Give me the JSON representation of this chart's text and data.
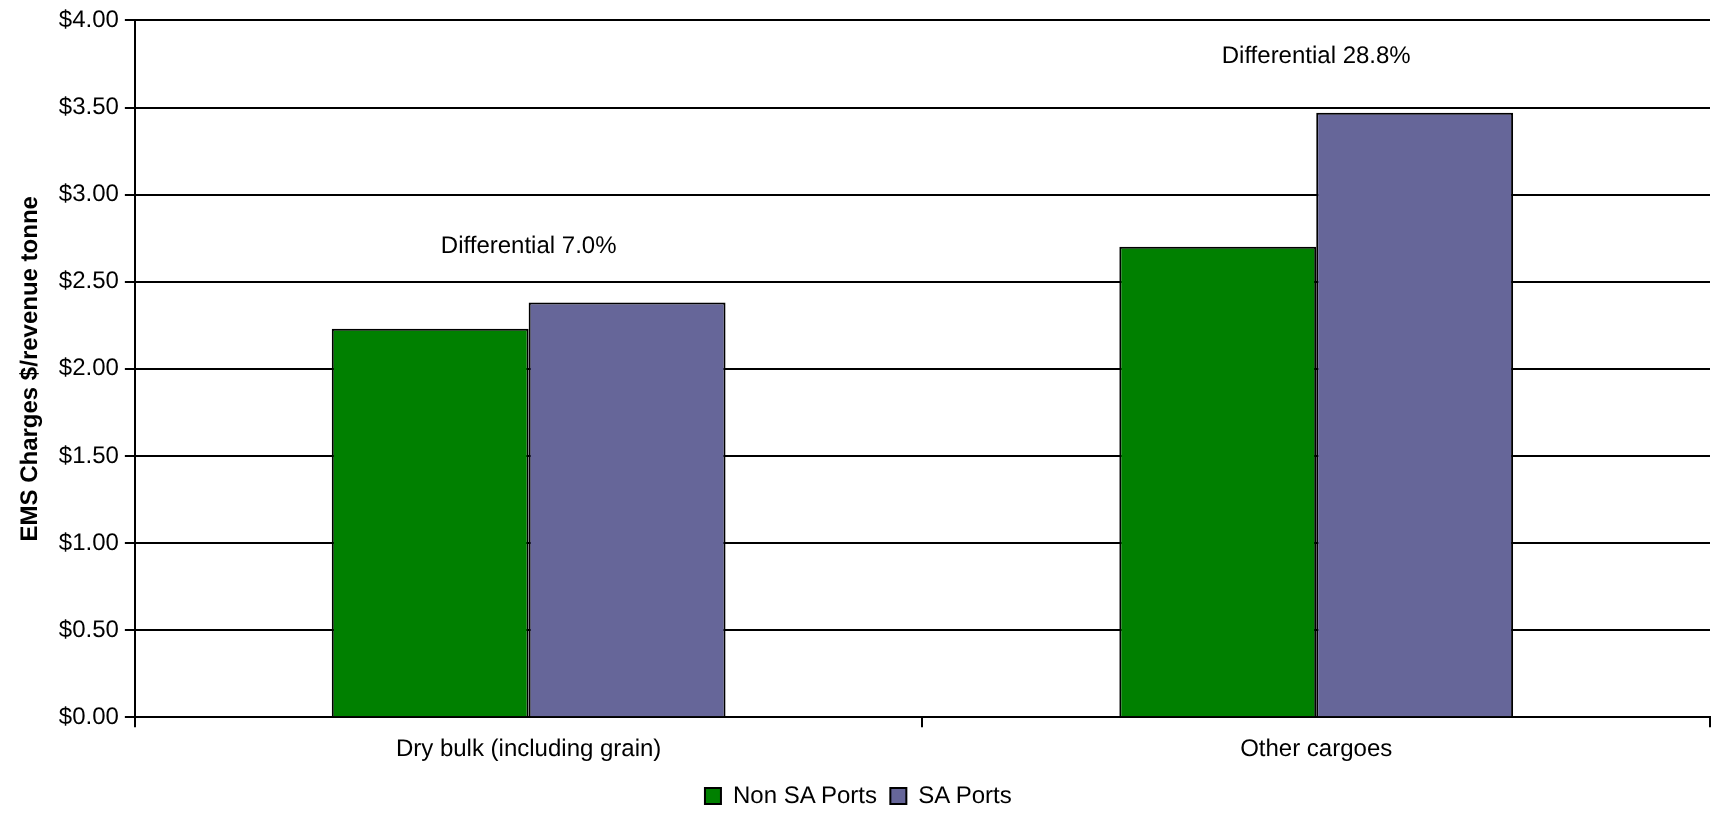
{
  "chart_data": {
    "type": "bar",
    "ylabel": "EMS Charges $/revenue tonne",
    "categories": [
      "Dry bulk (including grain)",
      "Other cargoes"
    ],
    "series": [
      {
        "name": "Non SA Ports",
        "color": "#008000",
        "values": [
          2.23,
          2.7
        ]
      },
      {
        "name": "SA Ports",
        "color": "#666699",
        "values": [
          2.38,
          3.47
        ]
      }
    ],
    "ylim": [
      0,
      4
    ],
    "yticks": [
      {
        "value": 0,
        "label": "$0.00"
      },
      {
        "value": 0.5,
        "label": "$0.50"
      },
      {
        "value": 1,
        "label": "$1.00"
      },
      {
        "value": 1.5,
        "label": "$1.50"
      },
      {
        "value": 2,
        "label": "$2.00"
      },
      {
        "value": 2.5,
        "label": "$2.50"
      },
      {
        "value": 3,
        "label": "$3.00"
      },
      {
        "value": 3.5,
        "label": "$3.50"
      },
      {
        "value": 4,
        "label": "$4.00"
      }
    ],
    "grid": "y",
    "legend": "bottom",
    "annotations": [
      "Differential 7.0%",
      "Differential 28.8%"
    ]
  }
}
